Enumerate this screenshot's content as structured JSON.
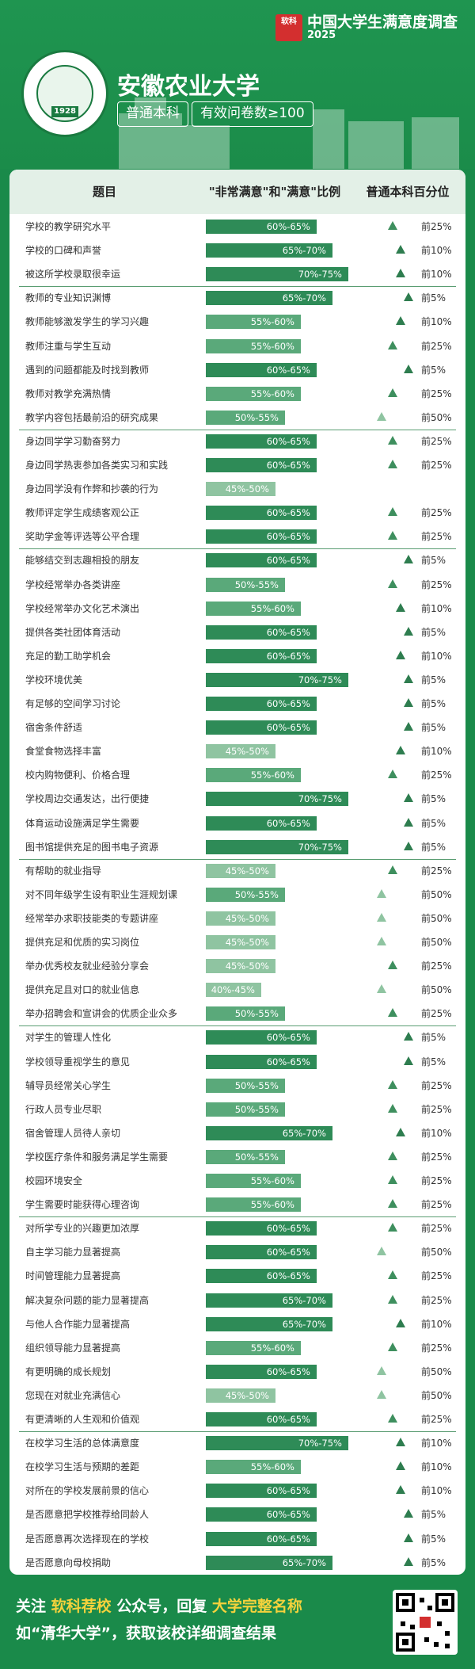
{
  "brand": {
    "title": "中国大学生满意度调查",
    "year": "2025",
    "logo_text": "软科"
  },
  "university": {
    "name": "安徽农业大学",
    "tag1": "普通本科",
    "tag2": "有效问卷数≥100",
    "founded": "1928"
  },
  "table": {
    "headers": [
      "题目",
      "\"非常满意\"和\"满意\"比例",
      "普通本科百分位"
    ],
    "rows": [
      {
        "label": "学校的教学研究水平",
        "ratio": "60%-65%",
        "rank": "前25%"
      },
      {
        "label": "学校的口碑和声誉",
        "ratio": "65%-70%",
        "rank": "前10%"
      },
      {
        "label": "被这所学校录取很幸运",
        "ratio": "70%-75%",
        "rank": "前10%"
      },
      {
        "label": "教师的专业知识渊博",
        "ratio": "65%-70%",
        "rank": "前5%"
      },
      {
        "label": "教师能够激发学生的学习兴趣",
        "ratio": "55%-60%",
        "rank": "前10%"
      },
      {
        "label": "教师注重与学生互动",
        "ratio": "55%-60%",
        "rank": "前25%"
      },
      {
        "label": "遇到的问题都能及时找到教师",
        "ratio": "60%-65%",
        "rank": "前5%"
      },
      {
        "label": "教师对教学充满热情",
        "ratio": "55%-60%",
        "rank": "前25%"
      },
      {
        "label": "教学内容包括最前沿的研究成果",
        "ratio": "50%-55%",
        "rank": "前50%"
      },
      {
        "label": "身边同学学习勤奋努力",
        "ratio": "60%-65%",
        "rank": "前25%"
      },
      {
        "label": "身边同学热衷参加各类实习和实践",
        "ratio": "60%-65%",
        "rank": "前25%"
      },
      {
        "label": "身边同学没有作弊和抄袭的行为",
        "ratio": "45%-50%",
        "rank": ""
      },
      {
        "label": "教师评定学生成绩客观公正",
        "ratio": "60%-65%",
        "rank": "前25%"
      },
      {
        "label": "奖助学金等评选等公平合理",
        "ratio": "60%-65%",
        "rank": "前25%"
      },
      {
        "label": "能够结交到志趣相投的朋友",
        "ratio": "60%-65%",
        "rank": "前5%"
      },
      {
        "label": "学校经常举办各类讲座",
        "ratio": "50%-55%",
        "rank": "前25%"
      },
      {
        "label": "学校经常举办文化艺术演出",
        "ratio": "55%-60%",
        "rank": "前10%"
      },
      {
        "label": "提供各类社团体育活动",
        "ratio": "60%-65%",
        "rank": "前5%"
      },
      {
        "label": "充足的勤工助学机会",
        "ratio": "60%-65%",
        "rank": "前10%"
      },
      {
        "label": "学校环境优美",
        "ratio": "70%-75%",
        "rank": "前5%"
      },
      {
        "label": "有足够的空间学习讨论",
        "ratio": "60%-65%",
        "rank": "前5%"
      },
      {
        "label": "宿舍条件舒适",
        "ratio": "60%-65%",
        "rank": "前5%"
      },
      {
        "label": "食堂食物选择丰富",
        "ratio": "45%-50%",
        "rank": "前10%"
      },
      {
        "label": "校内购物便利、价格合理",
        "ratio": "55%-60%",
        "rank": "前25%"
      },
      {
        "label": "学校周边交通发达，出行便捷",
        "ratio": "70%-75%",
        "rank": "前5%"
      },
      {
        "label": "体育运动设施满足学生需要",
        "ratio": "60%-65%",
        "rank": "前5%"
      },
      {
        "label": "图书馆提供充足的图书电子资源",
        "ratio": "70%-75%",
        "rank": "前5%"
      },
      {
        "label": "有帮助的就业指导",
        "ratio": "45%-50%",
        "rank": "前25%"
      },
      {
        "label": "对不同年级学生设有职业生涯规划课",
        "ratio": "50%-55%",
        "rank": "前50%"
      },
      {
        "label": "经常举办求职技能类的专题讲座",
        "ratio": "45%-50%",
        "rank": "前50%"
      },
      {
        "label": "提供充足和优质的实习岗位",
        "ratio": "45%-50%",
        "rank": "前50%"
      },
      {
        "label": "举办优秀校友就业经验分享会",
        "ratio": "45%-50%",
        "rank": "前25%"
      },
      {
        "label": "提供充足且对口的就业信息",
        "ratio": "40%-45%",
        "rank": "前50%"
      },
      {
        "label": "举办招聘会和宣讲会的优质企业众多",
        "ratio": "50%-55%",
        "rank": "前25%"
      },
      {
        "label": "对学生的管理人性化",
        "ratio": "60%-65%",
        "rank": "前5%"
      },
      {
        "label": "学校领导重视学生的意见",
        "ratio": "60%-65%",
        "rank": "前5%"
      },
      {
        "label": "辅导员经常关心学生",
        "ratio": "50%-55%",
        "rank": "前25%"
      },
      {
        "label": "行政人员专业尽职",
        "ratio": "50%-55%",
        "rank": "前25%"
      },
      {
        "label": "宿舍管理人员待人亲切",
        "ratio": "65%-70%",
        "rank": "前10%"
      },
      {
        "label": "学校医疗条件和服务满足学生需要",
        "ratio": "50%-55%",
        "rank": "前25%"
      },
      {
        "label": "校园环境安全",
        "ratio": "55%-60%",
        "rank": "前25%"
      },
      {
        "label": "学生需要时能获得心理咨询",
        "ratio": "55%-60%",
        "rank": "前25%"
      },
      {
        "label": "对所学专业的兴趣更加浓厚",
        "ratio": "60%-65%",
        "rank": "前25%"
      },
      {
        "label": "自主学习能力显著提高",
        "ratio": "60%-65%",
        "rank": "前50%"
      },
      {
        "label": "时间管理能力显著提高",
        "ratio": "60%-65%",
        "rank": "前25%"
      },
      {
        "label": "解决复杂问题的能力显著提高",
        "ratio": "65%-70%",
        "rank": "前25%"
      },
      {
        "label": "与他人合作能力显著提高",
        "ratio": "65%-70%",
        "rank": "前10%"
      },
      {
        "label": "组织领导能力显著提高",
        "ratio": "55%-60%",
        "rank": "前25%"
      },
      {
        "label": "有更明确的成长规划",
        "ratio": "60%-65%",
        "rank": "前50%"
      },
      {
        "label": "您现在对就业充满信心",
        "ratio": "45%-50%",
        "rank": "前50%"
      },
      {
        "label": "有更清晰的人生观和价值观",
        "ratio": "60%-65%",
        "rank": "前25%"
      },
      {
        "label": "在校学习生活的总体满意度",
        "ratio": "70%-75%",
        "rank": "前10%"
      },
      {
        "label": "在校学习生活与预期的差距",
        "ratio": "55%-60%",
        "rank": "前10%"
      },
      {
        "label": "对所在的学校发展前景的信心",
        "ratio": "60%-65%",
        "rank": "前10%"
      },
      {
        "label": "是否愿意把学校推荐给同龄人",
        "ratio": "60%-65%",
        "rank": "前5%"
      },
      {
        "label": "是否愿意再次选择现在的学校",
        "ratio": "60%-65%",
        "rank": "前5%"
      },
      {
        "label": "是否愿意向母校捐助",
        "ratio": "65%-70%",
        "rank": "前5%"
      }
    ]
  },
  "footer": {
    "l1_a": "关注",
    "l1_b": "软科荐校",
    "l1_c": "公众号，回复",
    "l1_d": "大学完整名称",
    "l2": "如“清华大学”，获取该校详细调查结果"
  },
  "colors": {
    "bar_high": "#2e8b57",
    "bar_mid": "#5aa97a",
    "bar_low": "#8fc4a1"
  }
}
